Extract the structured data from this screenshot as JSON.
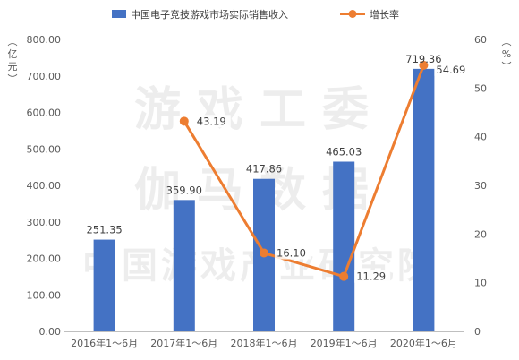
{
  "chart_data": {
    "type": "bar",
    "categories": [
      "2016年1～6月",
      "2017年1～6月",
      "2018年1～6月",
      "2019年1～6月",
      "2020年1～6月"
    ],
    "series": [
      {
        "name": "中国电子竞技游戏市场实际销售收入",
        "type": "bar",
        "axis": "left",
        "values": [
          251.35,
          359.9,
          417.86,
          465.03,
          719.36
        ],
        "color": "#4472C4",
        "labels": [
          "251.35",
          "359.90",
          "417.86",
          "465.03",
          "719.36"
        ]
      },
      {
        "name": "增长率",
        "type": "line",
        "axis": "right",
        "values": [
          null,
          43.19,
          16.1,
          11.29,
          54.69
        ],
        "color": "#ED7D31",
        "labels": [
          "",
          "43.19",
          "16.10",
          "11.29",
          "54.69"
        ]
      }
    ],
    "ylabel_left": "（亿元）",
    "ylabel_right": "（%）",
    "ylim_left": [
      0,
      800
    ],
    "ylim_right": [
      0,
      60
    ],
    "yticks_left": [
      "0.00",
      "100.00",
      "200.00",
      "300.00",
      "400.00",
      "500.00",
      "600.00",
      "700.00",
      "800.00"
    ],
    "yticks_right": [
      "0",
      "10",
      "20",
      "30",
      "40",
      "50",
      "60"
    ],
    "legend_position": "top",
    "grid": false,
    "watermark_lines": [
      "游戏工委",
      "伽马数据",
      "中国游戏产业研究院"
    ]
  }
}
